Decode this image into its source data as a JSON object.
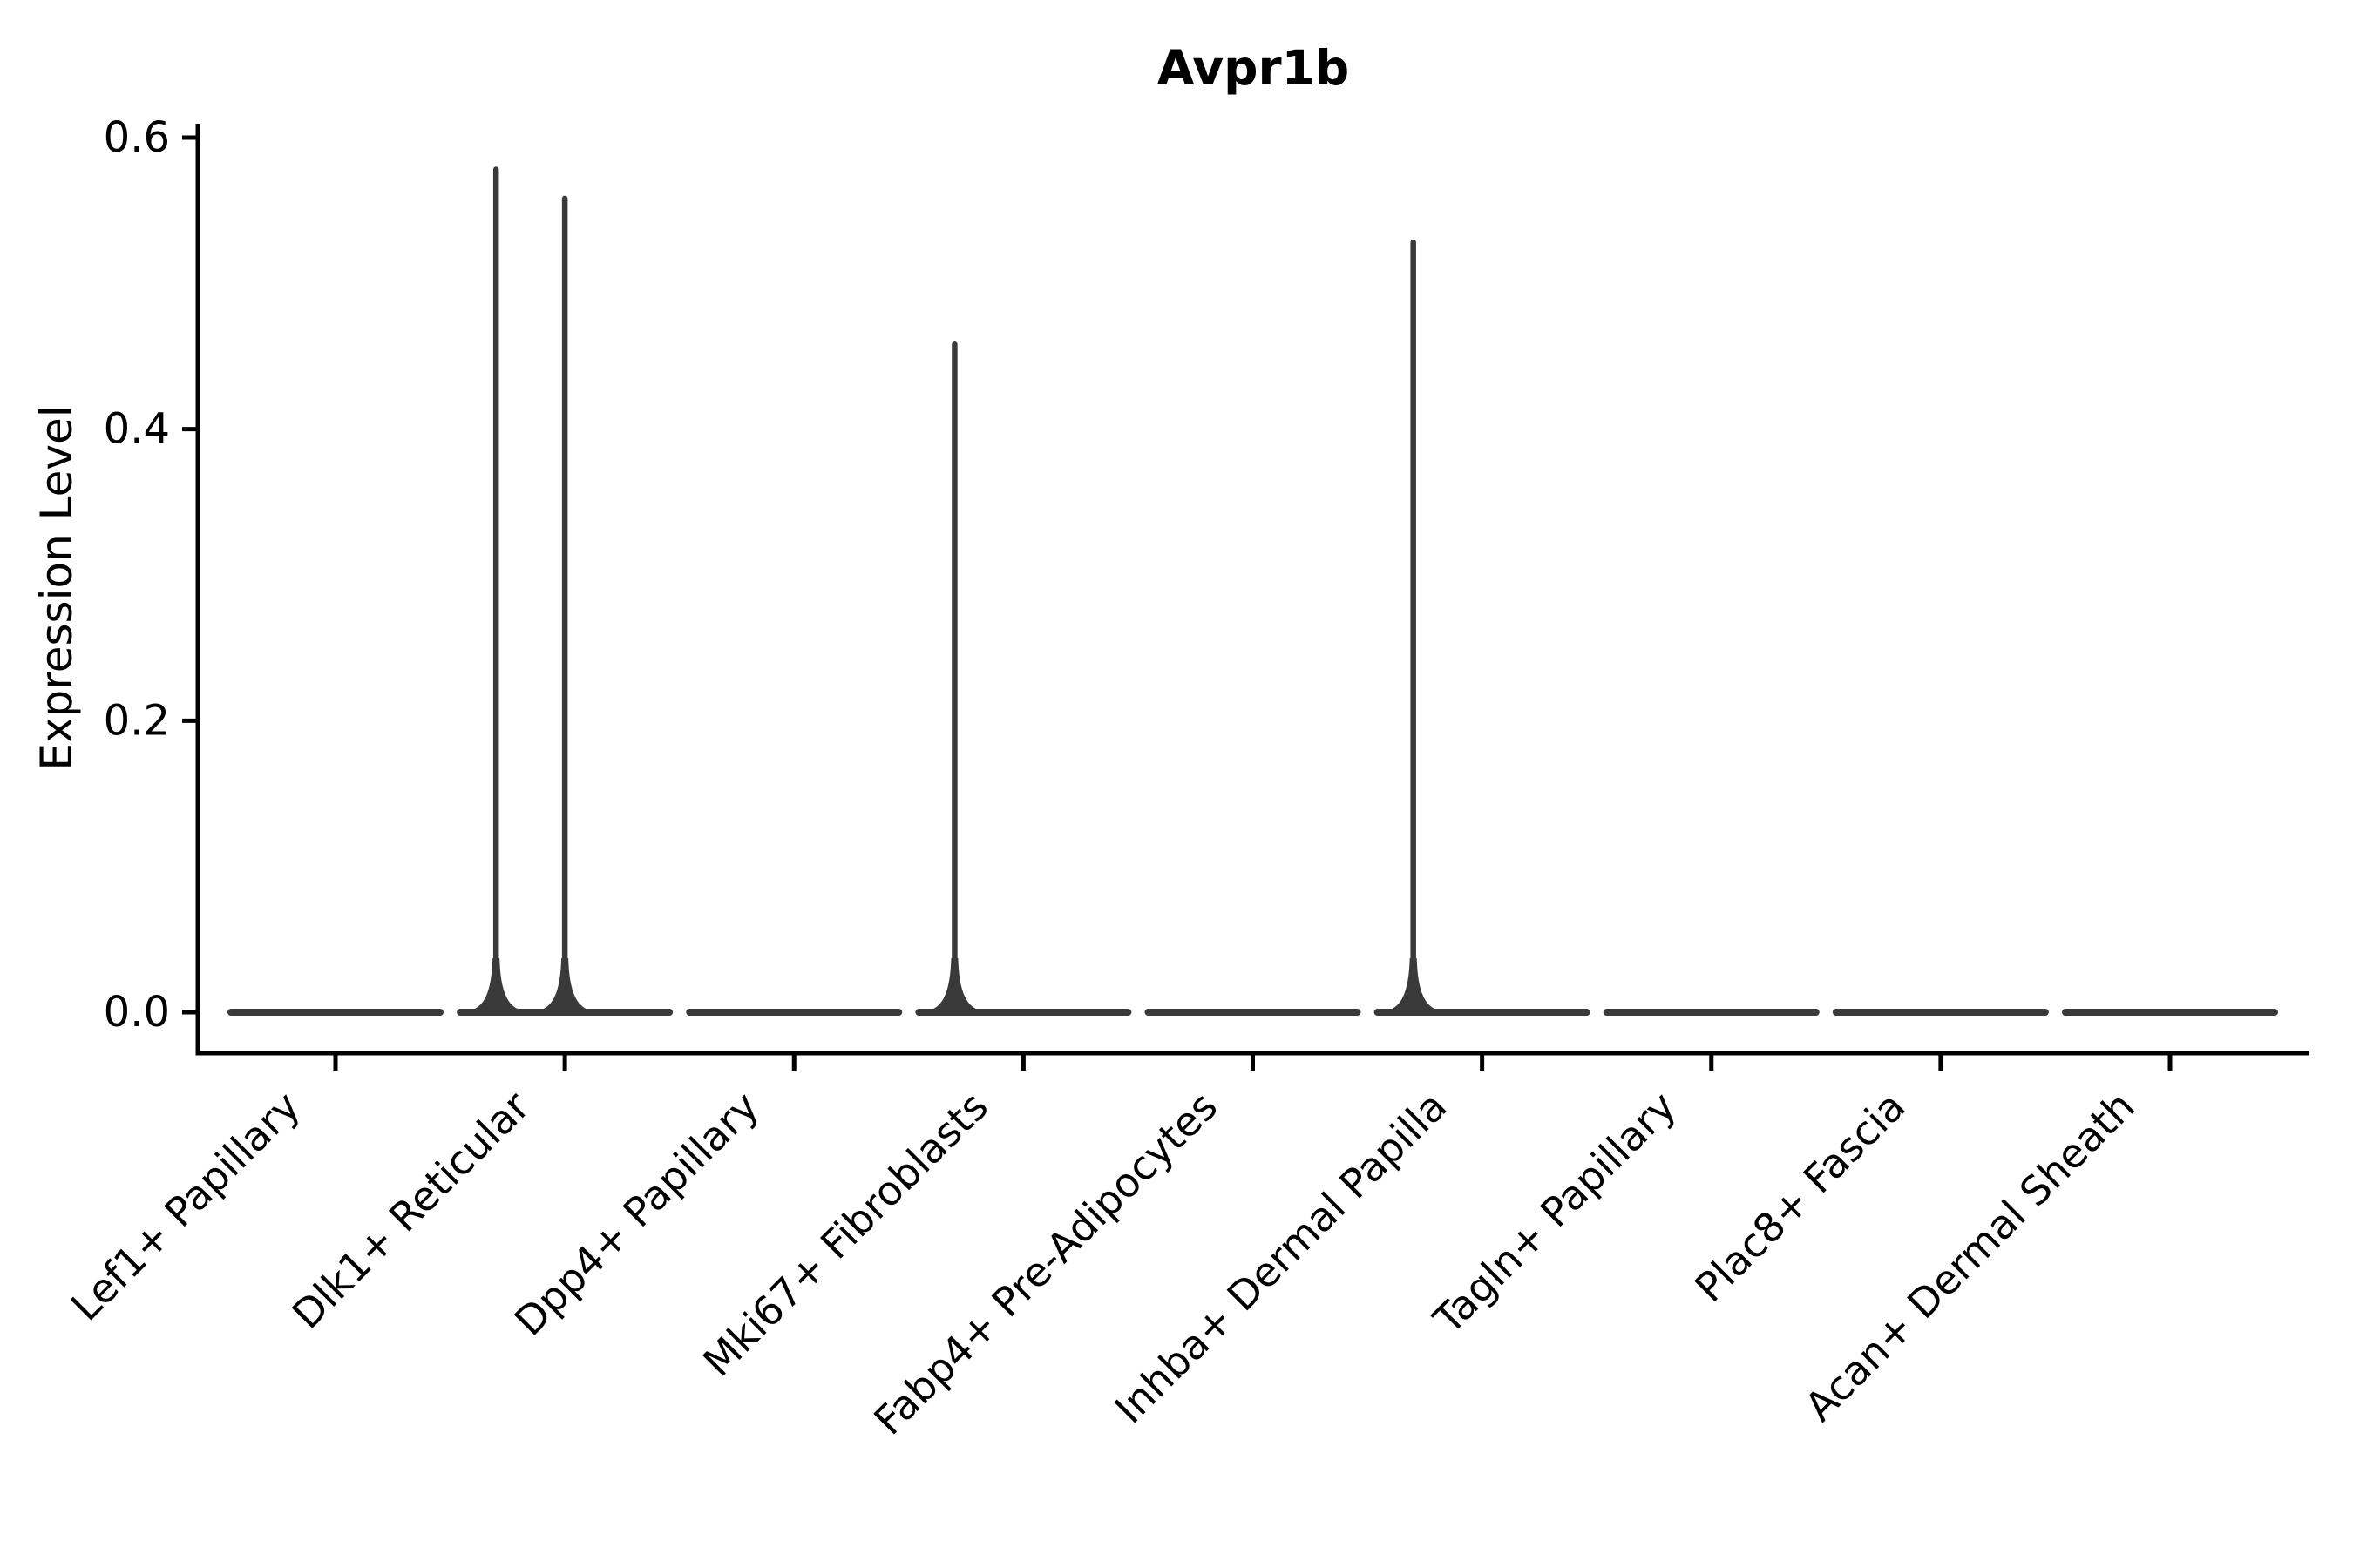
{
  "figure": {
    "background": "#ffffff",
    "axis_color": "#000000",
    "violin_color": "#3a3a3a"
  },
  "chart_data": {
    "type": "violin",
    "title": "Avpr1b",
    "xlabel": "",
    "ylabel": "Expression Level",
    "grid": false,
    "legend": null,
    "ylim": [
      -0.03,
      0.61
    ],
    "yticks": [
      0.0,
      0.2,
      0.4,
      0.6
    ],
    "ytick_labels": [
      "0.0",
      "0.2",
      "0.4",
      "0.6"
    ],
    "categories": [
      "Lef1+ Papillary",
      "Dlk1+ Reticular",
      "Dpp4+ Papillary",
      "Mki67+ Fibroblasts",
      "Fabp4+ Pre-Adipocytes",
      "Inhba+ Dermal Papilla",
      "Tagln+ Papillary",
      "Plac8+ Fascia",
      "Acan+ Dermal Sheath"
    ],
    "violins": [
      {
        "category": "Lef1+ Papillary",
        "flat_at": 0.0,
        "spikes": []
      },
      {
        "category": "Dlk1+ Reticular",
        "flat_at": 0.0,
        "spikes": [
          {
            "offset": -0.3,
            "max": 0.58
          },
          {
            "offset": 0.0,
            "max": 0.56
          }
        ]
      },
      {
        "category": "Dpp4+ Papillary",
        "flat_at": 0.0,
        "spikes": []
      },
      {
        "category": "Mki67+ Fibroblasts",
        "flat_at": 0.0,
        "spikes": [
          {
            "offset": -0.3,
            "max": 0.46
          }
        ]
      },
      {
        "category": "Fabp4+ Pre-Adipocytes",
        "flat_at": 0.0,
        "spikes": []
      },
      {
        "category": "Inhba+ Dermal Papilla",
        "flat_at": 0.0,
        "spikes": [
          {
            "offset": -0.3,
            "max": 0.53
          }
        ]
      },
      {
        "category": "Tagln+ Papillary",
        "flat_at": 0.0,
        "spikes": []
      },
      {
        "category": "Plac8+ Fascia",
        "flat_at": 0.0,
        "spikes": []
      },
      {
        "category": "Acan+ Dermal Sheath",
        "flat_at": 0.0,
        "spikes": []
      }
    ]
  }
}
